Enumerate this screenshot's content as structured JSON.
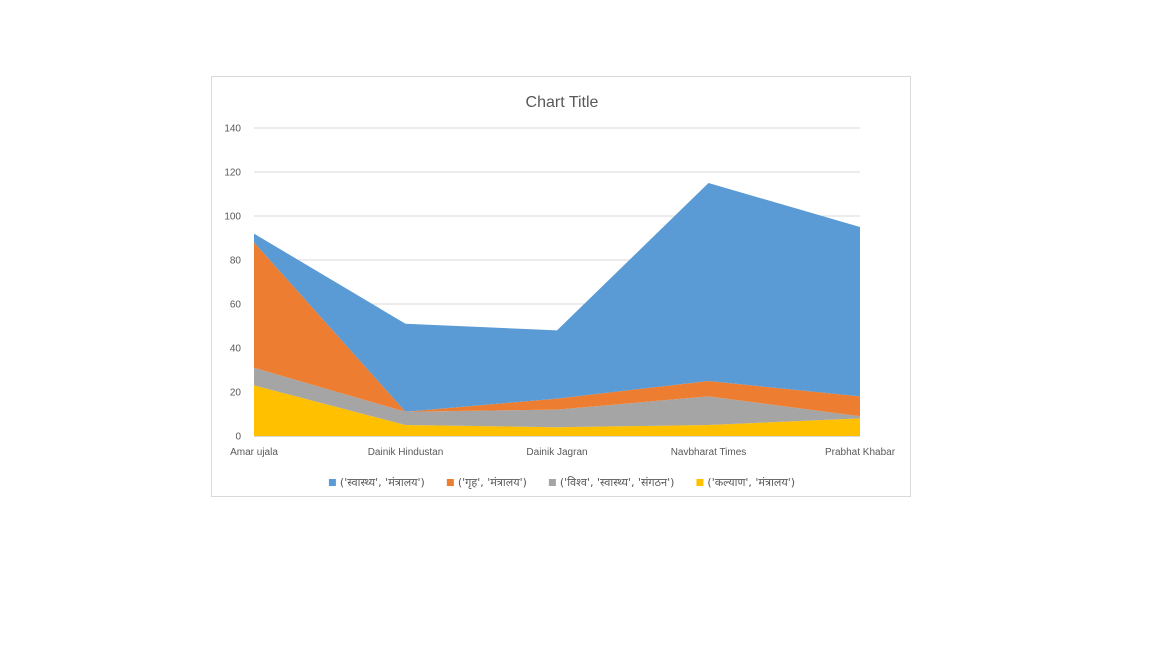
{
  "chart_data": {
    "type": "area",
    "stacked": true,
    "title": "Chart Title",
    "categories": [
      "Amar ujala",
      "Dainik Hindustan",
      "Dainik Jagran",
      "Navbharat Times",
      "Prabhat Khabar"
    ],
    "ylim": [
      0,
      140
    ],
    "yticks": [
      0,
      20,
      40,
      60,
      80,
      100,
      120,
      140
    ],
    "grid": true,
    "legend": "bottom",
    "series": [
      {
        "name": "('कल्याण',  'मंत्रालय')",
        "color": "#ffc000",
        "values": [
          23,
          5,
          4,
          5,
          8
        ]
      },
      {
        "name": "('विश्व',  'स्वास्थ्य',  'संगठन')",
        "color": "#a5a5a5",
        "values": [
          8,
          6,
          8,
          13,
          1
        ]
      },
      {
        "name": "('गृह',  'मंत्रालय')",
        "color": "#ed7d31",
        "values": [
          57,
          0,
          5,
          7,
          9
        ]
      },
      {
        "name": "('स्वास्थ्य',  'मंत्रालय')",
        "color": "#5b9bd5",
        "values": [
          4,
          40,
          31,
          90,
          77
        ]
      }
    ],
    "legend_order": [
      3,
      2,
      1,
      0
    ]
  }
}
